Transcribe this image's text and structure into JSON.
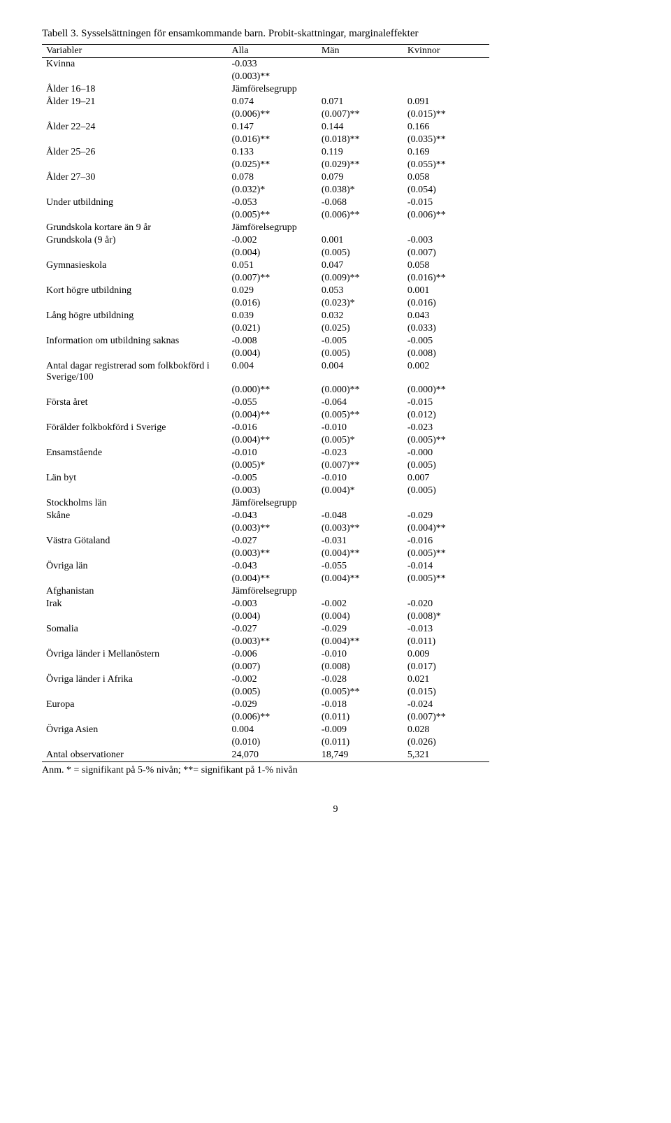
{
  "title": "Tabell 3. Sysselsättningen för ensamkommande barn. Probit-skattningar, marginaleffekter",
  "headers": {
    "c0": "Variabler",
    "c1": "Alla",
    "c2": "Män",
    "c3": "Kvinnor"
  },
  "rows": [
    {
      "label": "Kvinna",
      "c1": "-0.033",
      "c2": "",
      "c3": ""
    },
    {
      "label": "",
      "c1": "(0.003)**",
      "c2": "",
      "c3": ""
    },
    {
      "label": "Ålder 16–18",
      "c1": "Jämförelsegrupp",
      "c2": "",
      "c3": ""
    },
    {
      "label": "Ålder 19–21",
      "c1": "0.074",
      "c2": "0.071",
      "c3": "0.091"
    },
    {
      "label": "",
      "c1": "(0.006)**",
      "c2": "(0.007)**",
      "c3": "(0.015)**"
    },
    {
      "label": "Ålder 22–24",
      "c1": "0.147",
      "c2": "0.144",
      "c3": "0.166"
    },
    {
      "label": "",
      "c1": "(0.016)**",
      "c2": "(0.018)**",
      "c3": "(0.035)**"
    },
    {
      "label": "Ålder 25–26",
      "c1": "0.133",
      "c2": "0.119",
      "c3": "0.169"
    },
    {
      "label": "",
      "c1": "(0.025)**",
      "c2": "(0.029)**",
      "c3": "(0.055)**"
    },
    {
      "label": "Ålder 27–30",
      "c1": "0.078",
      "c2": "0.079",
      "c3": "0.058"
    },
    {
      "label": "",
      "c1": "(0.032)*",
      "c2": "(0.038)*",
      "c3": "(0.054)"
    },
    {
      "label": "Under utbildning",
      "c1": "-0.053",
      "c2": "-0.068",
      "c3": "-0.015"
    },
    {
      "label": "",
      "c1": "(0.005)**",
      "c2": "(0.006)**",
      "c3": "(0.006)**"
    },
    {
      "label": "Grundskola kortare än 9 år",
      "c1": "Jämförelsegrupp",
      "c2": "",
      "c3": ""
    },
    {
      "label": "Grundskola (9 år)",
      "c1": "-0.002",
      "c2": "0.001",
      "c3": "-0.003"
    },
    {
      "label": "",
      "c1": "(0.004)",
      "c2": "(0.005)",
      "c3": "(0.007)"
    },
    {
      "label": "Gymnasieskola",
      "c1": "0.051",
      "c2": "0.047",
      "c3": "0.058"
    },
    {
      "label": "",
      "c1": "(0.007)**",
      "c2": "(0.009)**",
      "c3": "(0.016)**"
    },
    {
      "label": "Kort högre utbildning",
      "c1": "0.029",
      "c2": "0.053",
      "c3": "0.001"
    },
    {
      "label": "",
      "c1": "(0.016)",
      "c2": "(0.023)*",
      "c3": "(0.016)"
    },
    {
      "label": "Lång högre utbildning",
      "c1": "0.039",
      "c2": "0.032",
      "c3": "0.043"
    },
    {
      "label": "",
      "c1": "(0.021)",
      "c2": "(0.025)",
      "c3": "(0.033)"
    },
    {
      "label": "Information om utbildning saknas",
      "c1": "-0.008",
      "c2": "-0.005",
      "c3": "-0.005"
    },
    {
      "label": "",
      "c1": "(0.004)",
      "c2": "(0.005)",
      "c3": "(0.008)"
    },
    {
      "label": "Antal dagar registrerad som folkbokförd i Sverige/100",
      "c1": "0.004",
      "c2": "0.004",
      "c3": "0.002"
    },
    {
      "label": "",
      "c1": "(0.000)**",
      "c2": "(0.000)**",
      "c3": "(0.000)**"
    },
    {
      "label": "Första året",
      "c1": "-0.055",
      "c2": "-0.064",
      "c3": "-0.015"
    },
    {
      "label": "",
      "c1": "(0.004)**",
      "c2": "(0.005)**",
      "c3": "(0.012)"
    },
    {
      "label": "Förälder folkbokförd i Sverige",
      "c1": "-0.016",
      "c2": "-0.010",
      "c3": "-0.023"
    },
    {
      "label": "",
      "c1": "(0.004)**",
      "c2": "(0.005)*",
      "c3": "(0.005)**"
    },
    {
      "label": "Ensamstående",
      "c1": "-0.010",
      "c2": "-0.023",
      "c3": "-0.000"
    },
    {
      "label": "",
      "c1": "(0.005)*",
      "c2": "(0.007)**",
      "c3": "(0.005)"
    },
    {
      "label": "Län byt",
      "c1": "-0.005",
      "c2": "-0.010",
      "c3": "0.007"
    },
    {
      "label": "",
      "c1": "(0.003)",
      "c2": "(0.004)*",
      "c3": "(0.005)"
    },
    {
      "label": "Stockholms län",
      "c1": "Jämförelsegrupp",
      "c2": "",
      "c3": ""
    },
    {
      "label": "Skåne",
      "c1": "-0.043",
      "c2": "-0.048",
      "c3": "-0.029"
    },
    {
      "label": "",
      "c1": "(0.003)**",
      "c2": "(0.003)**",
      "c3": "(0.004)**"
    },
    {
      "label": "Västra Götaland",
      "c1": "-0.027",
      "c2": "-0.031",
      "c3": "-0.016"
    },
    {
      "label": "",
      "c1": "(0.003)**",
      "c2": "(0.004)**",
      "c3": "(0.005)**"
    },
    {
      "label": "Övriga län",
      "c1": "-0.043",
      "c2": "-0.055",
      "c3": "-0.014"
    },
    {
      "label": "",
      "c1": "(0.004)**",
      "c2": "(0.004)**",
      "c3": "(0.005)**"
    },
    {
      "label": "Afghanistan",
      "c1": "Jämförelsegrupp",
      "c2": "",
      "c3": ""
    },
    {
      "label": "Irak",
      "c1": "-0.003",
      "c2": "-0.002",
      "c3": "-0.020"
    },
    {
      "label": "",
      "c1": "(0.004)",
      "c2": "(0.004)",
      "c3": "(0.008)*"
    },
    {
      "label": "Somalia",
      "c1": "-0.027",
      "c2": "-0.029",
      "c3": "-0.013"
    },
    {
      "label": "",
      "c1": "(0.003)**",
      "c2": "(0.004)**",
      "c3": "(0.011)"
    },
    {
      "label": "Övriga länder i Mellanöstern",
      "c1": "-0.006",
      "c2": "-0.010",
      "c3": "0.009"
    },
    {
      "label": "",
      "c1": "(0.007)",
      "c2": "(0.008)",
      "c3": "(0.017)"
    },
    {
      "label": "Övriga länder i Afrika",
      "c1": "-0.002",
      "c2": "-0.028",
      "c3": "0.021"
    },
    {
      "label": "",
      "c1": "(0.005)",
      "c2": "(0.005)**",
      "c3": "(0.015)"
    },
    {
      "label": "Europa",
      "c1": "-0.029",
      "c2": "-0.018",
      "c3": "-0.024"
    },
    {
      "label": "",
      "c1": "(0.006)**",
      "c2": "(0.011)",
      "c3": "(0.007)**"
    },
    {
      "label": "Övriga Asien",
      "c1": "0.004",
      "c2": "-0.009",
      "c3": "0.028"
    },
    {
      "label": "",
      "c1": "(0.010)",
      "c2": "(0.011)",
      "c3": "(0.026)"
    },
    {
      "label": "Antal observationer",
      "c1": "24,070",
      "c2": "18,749",
      "c3": "5,321",
      "last": true
    }
  ],
  "note": "Anm. * = signifikant på 5-% nivån; **= signifikant på 1-% nivån",
  "pagenum": "9"
}
